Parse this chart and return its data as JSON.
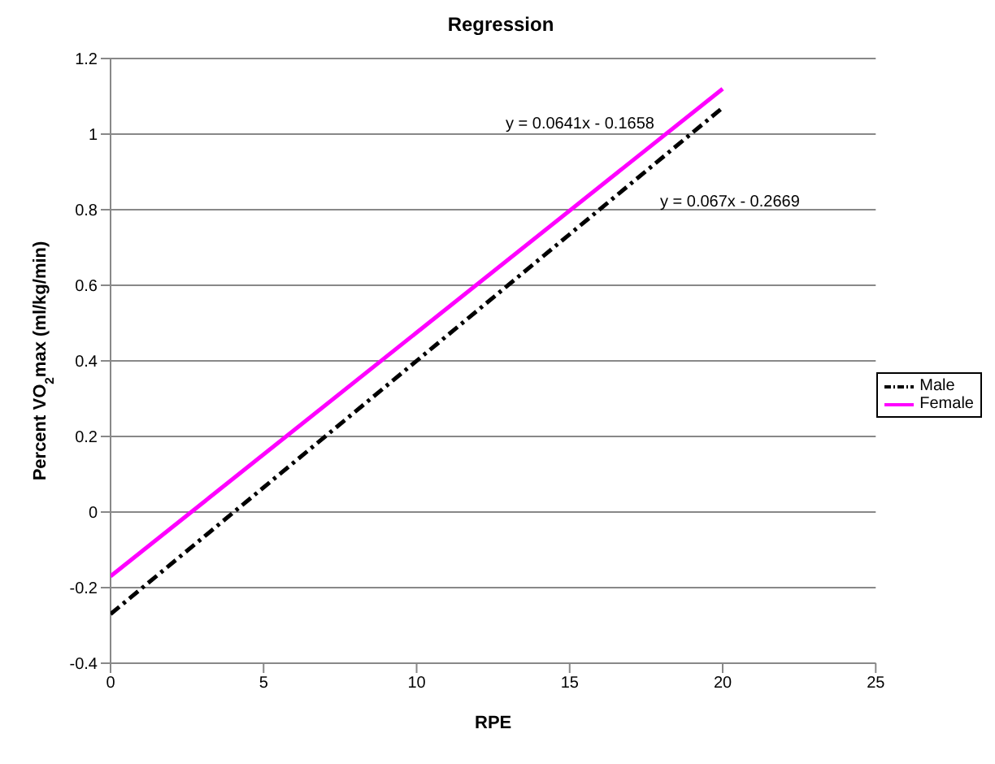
{
  "chart_data": {
    "type": "line",
    "title": "Regression",
    "xlabel": "RPE",
    "ylabel": "Percent VO$_{2}$max (ml/kg/min)",
    "xlim": [
      0,
      25
    ],
    "xticks": [
      0,
      5,
      10,
      15,
      20,
      25
    ],
    "ylim": [
      -0.4,
      1.2
    ],
    "yticks": [
      -0.4,
      -0.2,
      0,
      0.2,
      0.4,
      0.6,
      0.8,
      1,
      1.2
    ],
    "x": [
      0,
      20
    ],
    "grid": "y",
    "legend": "right",
    "marker": "none",
    "series": [
      {
        "name": "Male",
        "color": "#000000",
        "values": [
          -0.27,
          1.07
        ],
        "line_style": "dashed"
      },
      {
        "name": "Female",
        "color": "#ff00ff",
        "values": [
          -0.17,
          1.12
        ],
        "line_style": "solid"
      }
    ],
    "annotations": [
      "y = 0.0641x - 0.1658",
      "y = 0.067x - 0.2669"
    ]
  }
}
